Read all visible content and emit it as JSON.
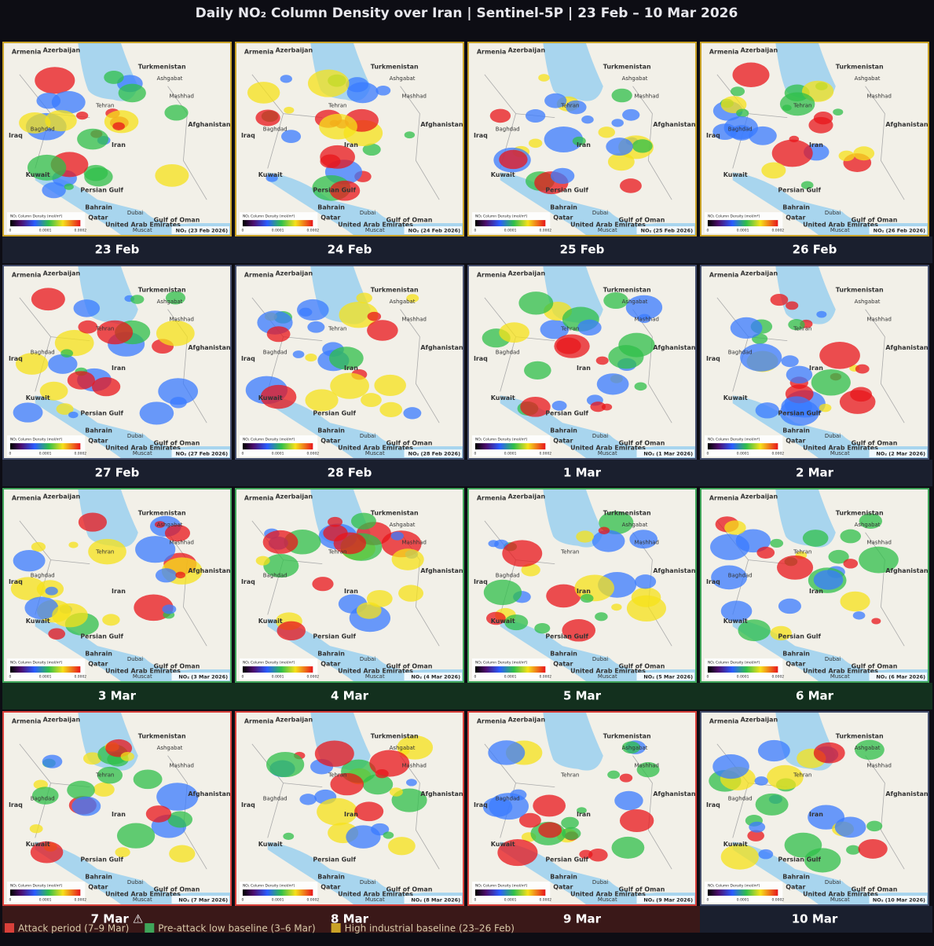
{
  "title": "Daily NO₂ Column Density over Iran | Sentinel-5P | 23 Feb – 10 Mar 2026",
  "map": {
    "labels": [
      {
        "text": "Armenia",
        "kind": "country"
      },
      {
        "text": "Azerbaijan",
        "kind": "country"
      },
      {
        "text": "Turkmenistan",
        "kind": "country"
      },
      {
        "text": "Ashgabat",
        "kind": "city"
      },
      {
        "text": "Mashhad",
        "kind": "city"
      },
      {
        "text": "Tehran",
        "kind": "city"
      },
      {
        "text": "Iraq",
        "kind": "country"
      },
      {
        "text": "Baghdad",
        "kind": "city"
      },
      {
        "text": "Iran",
        "kind": "country"
      },
      {
        "text": "Afghanistan",
        "kind": "country"
      },
      {
        "text": "Kuwait",
        "kind": "country"
      },
      {
        "text": "Persian Gulf",
        "kind": "sea"
      },
      {
        "text": "Bahrain",
        "kind": "country"
      },
      {
        "text": "Qatar",
        "kind": "country"
      },
      {
        "text": "Dubai",
        "kind": "city"
      },
      {
        "text": "United Arab Emirates",
        "kind": "country"
      },
      {
        "text": "Muscat",
        "kind": "city"
      },
      {
        "text": "Gulf of Oman",
        "kind": "sea"
      }
    ],
    "colorbar_title": "NO₂ Column Density (mol/m²)",
    "colorbar_ticks": [
      "0",
      "0.0001",
      "0.0002"
    ]
  },
  "panels": [
    {
      "date": "23 Feb",
      "caption": "NO₂ (23 Feb 2026)",
      "border_color": "#c9a227",
      "band_color": "#1a1f2e"
    },
    {
      "date": "24 Feb",
      "caption": "NO₂ (24 Feb 2026)",
      "border_color": "#c9a227",
      "band_color": "#1a1f2e"
    },
    {
      "date": "25 Feb",
      "caption": "NO₂ (25 Feb 2026)",
      "border_color": "#c9a227",
      "band_color": "#1a1f2e"
    },
    {
      "date": "26 Feb",
      "caption": "NO₂ (26 Feb 2026)",
      "border_color": "#c9a227",
      "band_color": "#1a1f2e"
    },
    {
      "date": "27 Feb",
      "caption": "NO₂ (27 Feb 2026)",
      "border_color": "#46506e",
      "band_color": "#1a1f2e"
    },
    {
      "date": "28 Feb",
      "caption": "NO₂ (28 Feb 2026)",
      "border_color": "#46506e",
      "band_color": "#1a1f2e"
    },
    {
      "date": "1 Mar",
      "caption": "NO₂ (1 Mar 2026)",
      "border_color": "#46506e",
      "band_color": "#1a1f2e"
    },
    {
      "date": "2 Mar",
      "caption": "NO₂ (2 Mar 2026)",
      "border_color": "#46506e",
      "band_color": "#1a1f2e"
    },
    {
      "date": "3 Mar",
      "caption": "NO₂ (3 Mar 2026)",
      "border_color": "#3fa55a",
      "band_color": "#13301e"
    },
    {
      "date": "4 Mar",
      "caption": "NO₂ (4 Mar 2026)",
      "border_color": "#3fa55a",
      "band_color": "#13301e"
    },
    {
      "date": "5 Mar",
      "caption": "NO₂ (5 Mar 2026)",
      "border_color": "#3fa55a",
      "band_color": "#13301e"
    },
    {
      "date": "6 Mar",
      "caption": "NO₂ (6 Mar 2026)",
      "border_color": "#3fa55a",
      "band_color": "#13301e"
    },
    {
      "date": "7 Mar ⚠",
      "caption": "NO₂ (7 Mar 2026)",
      "border_color": "#d9403a",
      "band_color": "#3a1818"
    },
    {
      "date": "8 Mar",
      "caption": "NO₂ (8 Mar 2026)",
      "border_color": "#d9403a",
      "band_color": "#3a1818"
    },
    {
      "date": "9 Mar",
      "caption": "NO₂ (9 Mar 2026)",
      "border_color": "#d9403a",
      "band_color": "#3a1818"
    },
    {
      "date": "10 Mar",
      "caption": "NO₂ (10 Mar 2026)",
      "border_color": "#46506e",
      "band_color": "#1a1f2e"
    }
  ],
  "legend": [
    {
      "name": "Attack period (7–9 Mar)",
      "color": "#d9403a"
    },
    {
      "name": "Pre-attack low baseline (3–6 Mar)",
      "color": "#3fa55a"
    },
    {
      "name": "High industrial baseline (23–26 Feb)",
      "color": "#c9a227"
    }
  ]
}
